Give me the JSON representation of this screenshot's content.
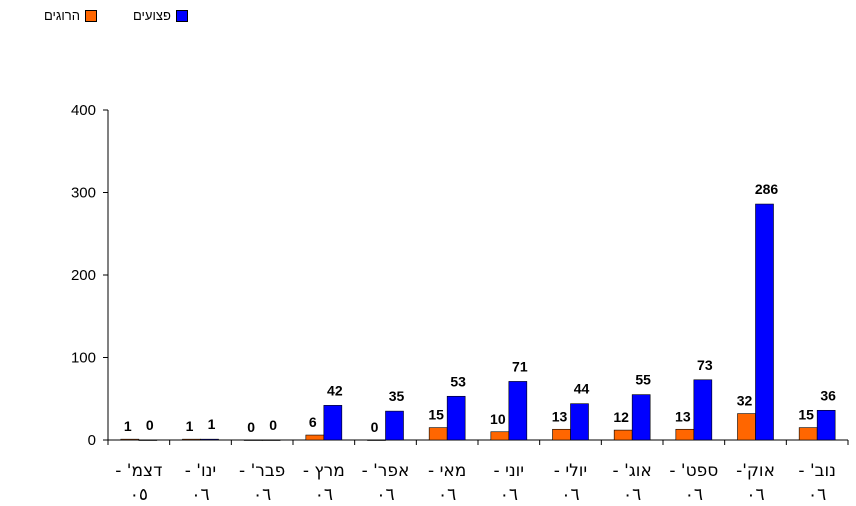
{
  "chart_data": {
    "type": "bar",
    "categories": [
      [
        "דצמ' -",
        "05"
      ],
      [
        "ינו' -",
        "06"
      ],
      [
        "פבר' -",
        "06"
      ],
      [
        "מרץ -",
        "06"
      ],
      [
        "אפר' -",
        "06"
      ],
      [
        "מאי -",
        "06"
      ],
      [
        "יוני -",
        "06"
      ],
      [
        "יולי -",
        "06"
      ],
      [
        "אוג' -",
        "06"
      ],
      [
        "ספט' -",
        "06"
      ],
      [
        "אוק'-",
        "06"
      ],
      [
        "נוב' -",
        "06"
      ]
    ],
    "series": [
      {
        "name": "הרוגים",
        "color": "#ff6600",
        "values": [
          1,
          1,
          0,
          6,
          0,
          15,
          10,
          13,
          12,
          13,
          32,
          15
        ]
      },
      {
        "name": "פצועים",
        "color": "#0000ff",
        "values": [
          0,
          1,
          0,
          42,
          35,
          53,
          71,
          44,
          55,
          73,
          286,
          36
        ]
      }
    ],
    "ylim": [
      0,
      400
    ],
    "yticks": [
      0,
      100,
      200,
      300,
      400
    ],
    "grid": false,
    "legend_position": "top-left",
    "digit_style": "arabic-indic"
  },
  "legend": [
    {
      "label": "פצועים",
      "color": "#0000ff"
    },
    {
      "label": "הרוגים",
      "color": "#ff6600"
    }
  ]
}
